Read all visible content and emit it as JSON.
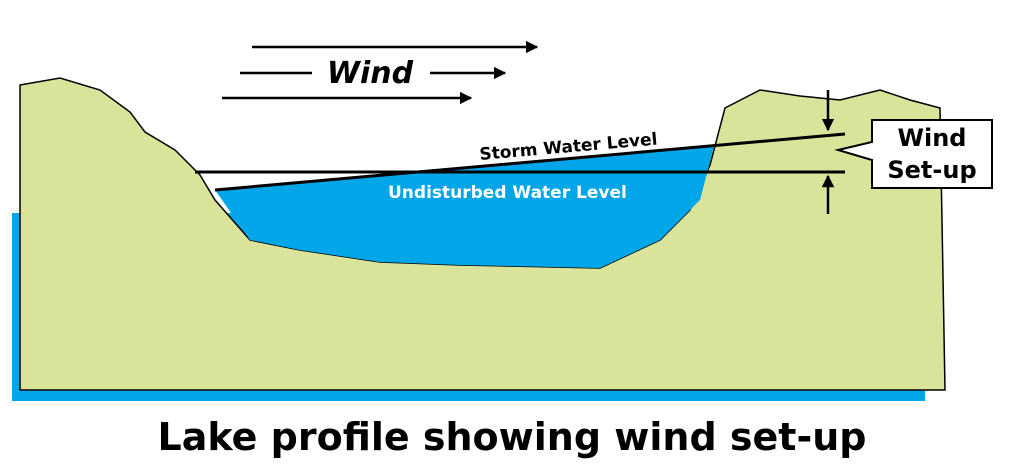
{
  "title": "Wind",
  "storm_level": "Storm Water Level",
  "undisturbed_level": "Undisturbed Water Level",
  "callout": {
    "line1": "Wind",
    "line2": "Set-up"
  },
  "caption": "Lake profile showing wind set-up"
}
